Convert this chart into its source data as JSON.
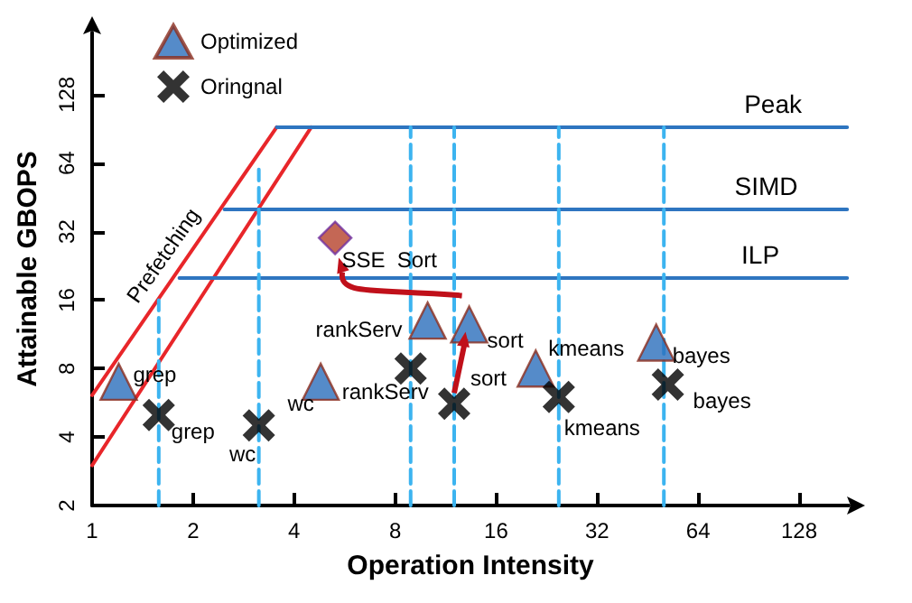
{
  "chart_data": {
    "type": "scatter",
    "xlabel": "Operation Intensity",
    "ylabel": "Attainable GBOPS",
    "log": "xy",
    "grid": false,
    "legend": "top left",
    "xlim": [
      1,
      180
    ],
    "xticks": [
      1,
      2,
      4,
      8,
      16,
      32,
      64,
      128
    ],
    "ylim": [
      2,
      240
    ],
    "yticks": [
      2,
      4,
      8,
      16,
      32,
      64,
      128
    ],
    "series": [
      {
        "type": "line",
        "color": "#e8262a",
        "x": [
          1,
          3.55
        ],
        "values": [
          6.1,
          92
        ]
      },
      {
        "type": "line",
        "color": "#e8262a",
        "x": [
          1,
          4.5
        ],
        "values": [
          3,
          92
        ]
      },
      {
        "type": "line",
        "name": "Peak",
        "color": "#2e75c0",
        "x": [
          3.55,
          178
        ],
        "values": [
          92,
          92
        ]
      },
      {
        "type": "line",
        "name": "SIMD",
        "color": "#2e75c0",
        "x": [
          2.48,
          178
        ],
        "values": [
          40,
          40
        ]
      },
      {
        "type": "line",
        "name": "ILP",
        "color": "#2e75c0",
        "x": [
          1.82,
          178
        ],
        "values": [
          20,
          20
        ]
      },
      {
        "type": "line",
        "color": "#3cb4f0",
        "line_style": "dashed",
        "x": [
          1.58,
          1.58
        ],
        "values": [
          2,
          16
        ]
      },
      {
        "type": "line",
        "color": "#3cb4f0",
        "line_style": "dashed",
        "x": [
          3.14,
          3.14
        ],
        "values": [
          2,
          60
        ]
      },
      {
        "type": "line",
        "color": "#3cb4f0",
        "line_style": "dashed",
        "x": [
          8.9,
          8.9
        ],
        "values": [
          2,
          92
        ]
      },
      {
        "type": "line",
        "color": "#3cb4f0",
        "line_style": "dashed",
        "x": [
          12,
          12
        ],
        "values": [
          2,
          92
        ]
      },
      {
        "type": "line",
        "color": "#3cb4f0",
        "line_style": "dashed",
        "x": [
          24.6,
          24.6
        ],
        "values": [
          2,
          92
        ]
      },
      {
        "type": "line",
        "color": "#3cb4f0",
        "line_style": "dashed",
        "x": [
          50.6,
          50.6
        ],
        "values": [
          2,
          92
        ]
      },
      {
        "name": "Optimized",
        "marker": "triangle",
        "color": "#2a6ebb",
        "x": [
          1.2,
          4.8,
          10,
          13.3,
          21,
          48
        ],
        "values": [
          7,
          7,
          13,
          12.5,
          8,
          10.4
        ]
      },
      {
        "name": "Oringnal",
        "marker": "cross",
        "color": "#000000",
        "x": [
          1.58,
          3.14,
          8.9,
          12,
          24.6,
          52
        ],
        "values": [
          5,
          4.5,
          8,
          5.6,
          6,
          6.8
        ]
      },
      {
        "marker": "diamond",
        "color": "#b5412a",
        "x": [
          5.3
        ],
        "values": [
          30
        ]
      }
    ],
    "annotations": [
      {
        "text": "grep",
        "x": 1.2,
        "y": 7
      },
      {
        "text": "grep",
        "x": 1.58,
        "y": 5
      },
      {
        "text": "wc",
        "x": 4.8,
        "y": 7
      },
      {
        "text": "wc",
        "x": 3.14,
        "y": 4.5
      },
      {
        "text": "rankServ",
        "x": 10,
        "y": 13
      },
      {
        "text": "rankServ",
        "x": 8.9,
        "y": 8
      },
      {
        "text": "SSE  Sort",
        "x": 5.3,
        "y": 30
      },
      {
        "text": "sort",
        "x": 13.3,
        "y": 12.5
      },
      {
        "text": "sort",
        "x": 12,
        "y": 5.6
      },
      {
        "text": "kmeans",
        "x": 21,
        "y": 8
      },
      {
        "text": "kmeans",
        "x": 24.6,
        "y": 6
      },
      {
        "text": "bayes",
        "x": 48,
        "y": 10.4
      },
      {
        "text": "bayes",
        "x": 52,
        "y": 6.8
      },
      {
        "text": "Prefetching",
        "x": 1.8,
        "y": 21.3
      }
    ]
  }
}
